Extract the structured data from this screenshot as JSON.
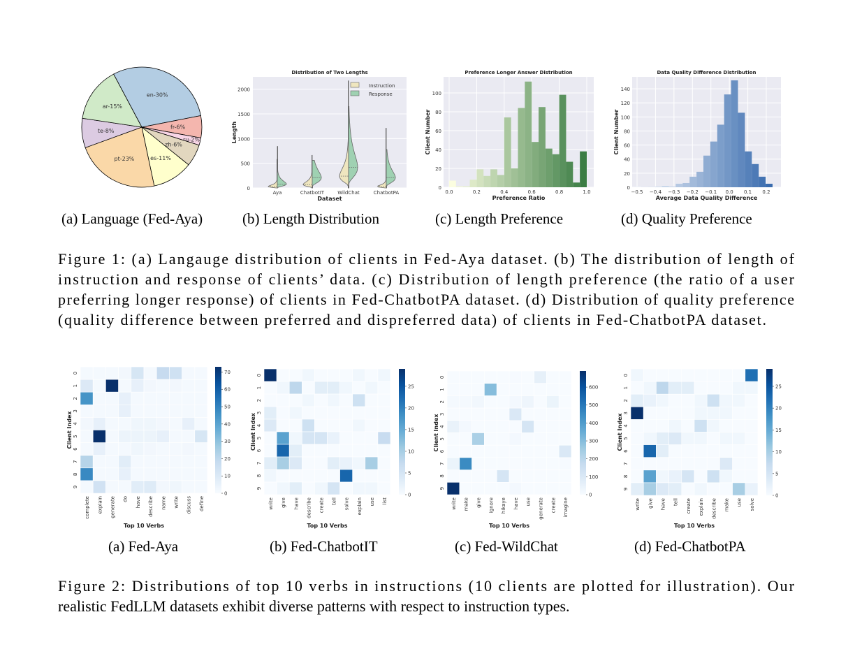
{
  "figure1": {
    "subcaptions": [
      "(a)  Language (Fed-Aya)",
      "(b)  Length Distribution",
      "(c)  Length Preference",
      "(d)  Quality Preference"
    ],
    "caption_lines": [
      "Figure 1: (a) Langauge distribution of clients in Fed-Aya dataset. (b) The distribution of length of",
      "instruction and response of clients’ data. (c) Distribution of length preference (the ratio of a user",
      "preferring longer response) of clients in Fed-ChatbotPA dataset. (d) Distribution of quality preference",
      "(quality difference between preferred and dispreferred data) of clients in Fed-ChatbotPA dataset."
    ]
  },
  "figure2": {
    "subcaptions": [
      "(a)  Fed-Aya",
      "(b)  Fed-ChatbotIT",
      "(c)  Fed-WildChat",
      "(d)  Fed-ChatbotPA"
    ],
    "caption_lines": [
      "Figure 2: Distributions of top 10 verbs in instructions (10 clients are plotted for illustration). Our",
      "realistic FedLLM datasets exhibit diverse patterns with respect to instruction types."
    ]
  },
  "chart_data": [
    {
      "type": "pie",
      "title": "",
      "labels": [
        "en-30%",
        "fr-6%",
        "ru-2%",
        "zh-6%",
        "es-11%",
        "pt-23%",
        "te-8%",
        "ar-15%"
      ],
      "values": [
        30,
        6,
        2,
        6,
        11,
        23,
        8,
        15
      ],
      "colors": [
        "#b3cde3",
        "#f4b6ae",
        "#f8d5e6",
        "#e2d7bf",
        "#ffffcc",
        "#fad8a8",
        "#dccbe2",
        "#d0eac8"
      ]
    },
    {
      "type": "violin",
      "title": "Distribution of Two Lengths",
      "xlabel": "Dataset",
      "ylabel": "Length",
      "categories": [
        "Aya",
        "ChatbotIT",
        "WildChat",
        "ChatbotPA"
      ],
      "yticks": [
        0,
        500,
        1000,
        1500,
        2000
      ],
      "ylim": [
        0,
        2250
      ],
      "legend": "top-right",
      "series": [
        {
          "name": "Instruction",
          "color": "#efe6bf",
          "max": [
            580,
            660,
            2170,
            1210
          ],
          "median": [
            30,
            70,
            240,
            30
          ]
        },
        {
          "name": "Response",
          "color": "#9fd1b2",
          "max": [
            840,
            560,
            1650,
            780
          ],
          "median": [
            80,
            210,
            420,
            210
          ]
        }
      ]
    },
    {
      "type": "bar",
      "title": "Preference Longer Answer Distribution",
      "xlabel": "Preference Ratio",
      "ylabel": "Client Number",
      "x_range": [
        0,
        1
      ],
      "xticks": [
        "0.0",
        "0.2",
        "0.4",
        "0.6",
        "0.8",
        "1.0"
      ],
      "yticks": [
        0,
        20,
        40,
        60,
        80,
        100
      ],
      "ylim": [
        0,
        117
      ],
      "values": [
        7,
        1,
        1,
        8,
        19,
        12,
        19,
        13,
        74,
        20,
        84,
        112,
        48,
        85,
        41,
        35,
        98,
        27,
        5,
        38
      ],
      "color_low": "#fbfde0",
      "color_high": "#3b7d44"
    },
    {
      "type": "bar",
      "title": "Data Quality Difference Distribution",
      "xlabel": "Average Data Quality Difference",
      "ylabel": "Client Number",
      "x_range": [
        -0.51,
        0.24
      ],
      "xticks": [
        "−0.5",
        "−0.4",
        "−0.3",
        "−0.2",
        "−0.1",
        "0.0",
        "0.1",
        "0.2"
      ],
      "yticks": [
        0,
        20,
        40,
        60,
        80,
        100,
        120,
        140
      ],
      "ylim": [
        0,
        157
      ],
      "values": [
        1,
        0.5,
        0.5,
        1,
        2,
        1,
        5,
        6,
        15,
        22,
        45,
        65,
        89,
        132,
        152,
        106,
        51,
        33,
        15,
        5
      ],
      "color_low": "#eef3fa",
      "color_high": "#3a6cae"
    },
    {
      "type": "heatmap",
      "xlabel": "Top 10 Verbs",
      "ylabel": "Client Index",
      "x_labels": [
        "complete",
        "explain",
        "generate",
        "do",
        "have",
        "describe",
        "name",
        "write",
        "discuss",
        "define"
      ],
      "y_labels": [
        "0",
        "1",
        "2",
        "3",
        "4",
        "5",
        "6",
        "7",
        "8",
        "9"
      ],
      "vmax": 73,
      "colorbar_ticks": [
        0,
        10,
        20,
        30,
        40,
        50,
        60,
        70
      ],
      "values": [
        [
          1,
          1,
          1,
          2,
          12,
          1,
          18,
          15,
          1,
          1
        ],
        [
          10,
          1,
          73,
          1,
          6,
          2,
          1,
          2,
          1,
          1
        ],
        [
          45,
          1,
          1,
          6,
          1,
          1,
          1,
          1,
          1,
          1
        ],
        [
          1,
          1,
          1,
          6,
          1,
          1,
          1,
          1,
          1,
          1
        ],
        [
          2,
          6,
          1,
          1,
          3,
          3,
          2,
          1,
          6,
          1
        ],
        [
          1,
          73,
          1,
          4,
          4,
          4,
          6,
          1,
          1,
          12
        ],
        [
          1,
          6,
          1,
          1,
          3,
          2,
          1,
          1,
          2,
          1
        ],
        [
          22,
          1,
          1,
          8,
          1,
          1,
          1,
          1,
          1,
          1
        ],
        [
          48,
          1,
          1,
          6,
          1,
          1,
          1,
          1,
          1,
          1
        ],
        [
          1,
          14,
          1,
          1,
          8,
          9,
          2,
          3,
          1,
          1
        ]
      ]
    },
    {
      "type": "heatmap",
      "xlabel": "Top 10 Verbs",
      "ylabel": "Client Index",
      "x_labels": [
        "write",
        "give",
        "have",
        "describe",
        "create",
        "tell",
        "solve",
        "explain",
        "use",
        "list"
      ],
      "y_labels": [
        "0",
        "1",
        "2",
        "3",
        "4",
        "5",
        "6",
        "7",
        "8",
        "9"
      ],
      "vmax": 29,
      "colorbar_ticks": [
        0,
        5,
        10,
        15,
        20,
        25
      ],
      "values": [
        [
          29,
          0,
          0,
          1,
          0,
          0,
          0,
          1,
          0,
          1
        ],
        [
          0,
          1,
          8,
          0,
          3,
          3,
          1,
          0,
          1,
          0
        ],
        [
          0,
          0,
          0,
          1,
          0,
          1,
          0,
          6,
          0,
          0
        ],
        [
          3,
          0,
          1,
          0,
          0,
          0,
          0,
          0,
          0,
          0
        ],
        [
          4,
          0,
          0,
          6,
          0,
          0,
          0,
          1,
          0,
          0
        ],
        [
          0,
          16,
          1,
          5,
          5,
          2,
          0,
          0,
          0,
          7
        ],
        [
          0,
          23,
          3,
          0,
          0,
          0,
          0,
          0,
          0,
          0
        ],
        [
          3,
          10,
          4,
          0,
          0,
          3,
          2,
          1,
          10,
          0
        ],
        [
          1,
          0,
          0,
          0,
          0,
          0,
          23,
          0,
          0,
          0
        ],
        [
          0,
          1,
          3,
          0,
          1,
          5,
          0,
          1,
          1,
          0
        ]
      ]
    },
    {
      "type": "heatmap",
      "xlabel": "Top 10 Verbs",
      "ylabel": "Client Index",
      "x_labels": [
        "write",
        "make",
        "give",
        "ignore",
        "hikaye",
        "have",
        "use",
        "generate",
        "create",
        "imagine"
      ],
      "y_labels": [
        "0",
        "1",
        "2",
        "3",
        "4",
        "5",
        "6",
        "7",
        "8",
        "9"
      ],
      "vmax": 690,
      "colorbar_ticks": [
        0,
        100,
        200,
        300,
        400,
        500,
        600
      ],
      "values": [
        [
          0,
          0,
          0,
          0,
          0,
          5,
          0,
          60,
          0,
          0
        ],
        [
          0,
          0,
          0,
          300,
          0,
          0,
          0,
          0,
          0,
          0
        ],
        [
          10,
          10,
          20,
          0,
          0,
          15,
          30,
          0,
          40,
          0
        ],
        [
          0,
          0,
          0,
          0,
          0,
          100,
          0,
          0,
          0,
          0
        ],
        [
          50,
          15,
          0,
          0,
          0,
          0,
          120,
          0,
          0,
          0
        ],
        [
          0,
          0,
          230,
          0,
          0,
          15,
          0,
          0,
          0,
          0
        ],
        [
          0,
          0,
          0,
          0,
          0,
          0,
          0,
          0,
          0,
          100
        ],
        [
          40,
          450,
          0,
          0,
          0,
          0,
          0,
          0,
          0,
          5
        ],
        [
          0,
          0,
          0,
          0,
          120,
          0,
          0,
          0,
          0,
          0
        ],
        [
          690,
          0,
          0,
          0,
          0,
          15,
          0,
          0,
          0,
          0
        ]
      ]
    },
    {
      "type": "heatmap",
      "xlabel": "Top 10 Verbs",
      "ylabel": "Client Index",
      "x_labels": [
        "write",
        "give",
        "have",
        "tell",
        "create",
        "explain",
        "describe",
        "make",
        "use",
        "solve"
      ],
      "y_labels": [
        "0",
        "1",
        "2",
        "3",
        "4",
        "5",
        "6",
        "7",
        "8",
        "9"
      ],
      "vmax": 29,
      "colorbar_ticks": [
        0,
        5,
        10,
        15,
        20,
        25
      ],
      "values": [
        [
          1,
          0,
          0,
          0,
          0,
          0,
          0,
          0,
          0,
          22
        ],
        [
          0,
          1,
          8,
          3,
          3,
          0,
          0,
          0,
          1,
          1
        ],
        [
          3,
          2,
          1,
          0,
          0,
          1,
          6,
          1,
          1,
          0
        ],
        [
          29,
          0,
          0,
          0,
          0,
          1,
          1,
          1,
          0,
          0
        ],
        [
          0,
          0,
          0,
          1,
          0,
          6,
          1,
          0,
          0,
          0
        ],
        [
          0,
          1,
          3,
          4,
          1,
          1,
          0,
          1,
          1,
          0
        ],
        [
          0,
          23,
          3,
          0,
          0,
          0,
          0,
          0,
          0,
          0
        ],
        [
          0,
          0,
          0,
          0,
          0,
          0,
          0,
          4,
          0,
          0
        ],
        [
          0,
          16,
          1,
          2,
          5,
          0,
          6,
          1,
          0,
          0
        ],
        [
          3,
          10,
          4,
          3,
          0,
          1,
          0,
          0,
          10,
          2
        ]
      ]
    }
  ]
}
